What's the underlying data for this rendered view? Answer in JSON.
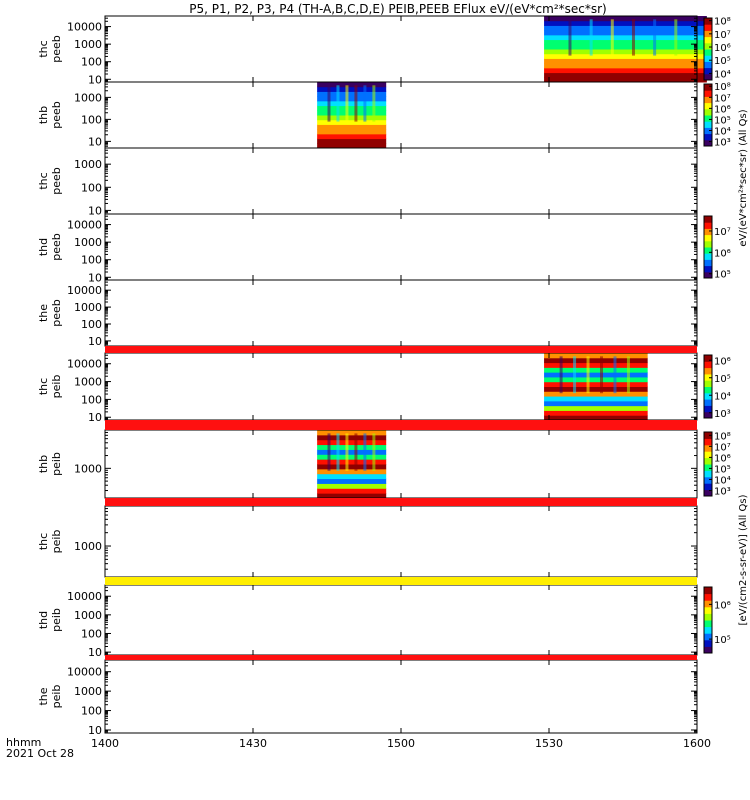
{
  "title": "P5, P1, P2, P3, P4 (TH-A,B,C,D,E) PEIB,PEEB EFlux eV/(eV*cm²*sec*sr)",
  "footer": {
    "hhmm": "hhmm",
    "date": "2021 Oct 28"
  },
  "colorbar_labels": {
    "peeb": "eV/(eV*cm²*sec*sr) (All Qs)",
    "peib": "[eV/(cm2-s-sr-eV)] (All Qs)"
  },
  "chart_data": {
    "type": "heatmap",
    "x_unit": "hhmm",
    "x_ticks": [
      "1400",
      "1430",
      "1500",
      "1530",
      "1600"
    ],
    "xlim": [
      "1400",
      "1600"
    ],
    "y_scale": "log",
    "panels": [
      {
        "probe": "thc",
        "product": "peeb",
        "ylim": [
          7,
          40000
        ],
        "y_ticks": [
          "10",
          "100",
          "1000",
          "10000"
        ],
        "data_interval": [
          "1529",
          "1602"
        ],
        "colorbar": {
          "ticks": [
            "10⁴",
            "10⁵",
            "10⁶",
            "10⁷",
            "10⁸"
          ],
          "range_exp": [
            3.5,
            8.2
          ]
        }
      },
      {
        "probe": "thb",
        "product": "peeb",
        "ylim": [
          5,
          5000
        ],
        "y_ticks": [
          "10",
          "100",
          "1000"
        ],
        "data_interval": [
          "1443",
          "1457"
        ],
        "colorbar": {
          "ticks": [
            "10³",
            "10⁴",
            "10⁵",
            "10⁶",
            "10⁷",
            "10⁸"
          ],
          "range_exp": [
            2.6,
            8.2
          ]
        }
      },
      {
        "probe": "thc",
        "product": "peeb",
        "ylim": [
          7,
          5000
        ],
        "y_ticks": [
          "10",
          "100",
          "1000"
        ],
        "data_interval": null
      },
      {
        "probe": "thd",
        "product": "peeb",
        "ylim": [
          7,
          40000
        ],
        "y_ticks": [
          "10",
          "100",
          "1000",
          "10000"
        ],
        "data_interval": null,
        "colorbar": {
          "ticks": [
            "10⁵",
            "10⁶",
            "10⁷"
          ],
          "range_exp": [
            4.8,
            7.7
          ]
        }
      },
      {
        "probe": "the",
        "product": "peeb",
        "ylim": [
          5,
          40000
        ],
        "y_ticks": [
          "10",
          "100",
          "1000",
          "10000"
        ],
        "data_interval": null
      },
      {
        "probe": "thc",
        "product": "peib",
        "ylim": [
          7,
          40000
        ],
        "y_ticks": [
          "10",
          "100",
          "1000",
          "10000"
        ],
        "data_interval": [
          "1529",
          "1550"
        ],
        "colorbar": {
          "ticks": [
            "10³",
            "10⁴",
            "10⁵",
            "10⁶"
          ],
          "range_exp": [
            2.7,
            6.3
          ]
        }
      },
      {
        "probe": "thb",
        "product": "peib",
        "ylim": [
          200,
          8000
        ],
        "y_ticks": [
          "1000"
        ],
        "data_interval": [
          "1443",
          "1457"
        ],
        "colorbar": {
          "ticks": [
            "10³",
            "10⁴",
            "10⁵",
            "10⁶",
            "10⁷",
            "10⁸"
          ],
          "range_exp": [
            2.5,
            8.3
          ]
        }
      },
      {
        "probe": "thc",
        "product": "peib",
        "ylim": [
          200,
          8000
        ],
        "y_ticks": [
          "1000"
        ],
        "data_interval": null
      },
      {
        "probe": "thd",
        "product": "peib",
        "ylim": [
          7,
          40000
        ],
        "y_ticks": [
          "10",
          "100",
          "1000",
          "10000"
        ],
        "data_interval": null,
        "colorbar": {
          "ticks": [
            "10⁵",
            "10⁶"
          ],
          "range_exp": [
            4.6,
            6.5
          ]
        }
      },
      {
        "probe": "the",
        "product": "peib",
        "ylim": [
          7,
          40000
        ],
        "y_ticks": [
          "10",
          "100",
          "1000",
          "10000"
        ],
        "data_interval": null
      }
    ],
    "colormap": [
      "#3a0060",
      "#0010c0",
      "#0070ff",
      "#00e0ff",
      "#00ff70",
      "#a0ff00",
      "#ffff00",
      "#ff9000",
      "#ff1000",
      "#900000"
    ]
  }
}
